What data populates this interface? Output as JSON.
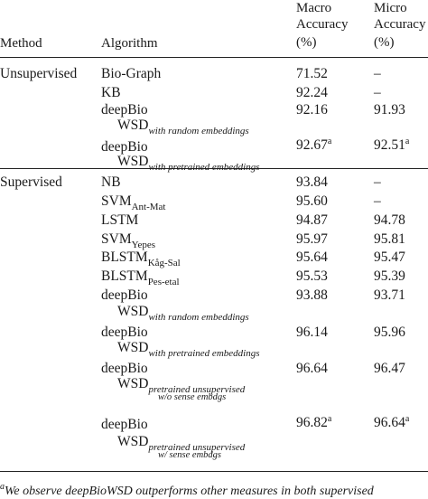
{
  "headers": {
    "method": "Method",
    "algorithm": "Algorithm",
    "macro": [
      "Macro",
      "Accuracy",
      "(%)"
    ],
    "micro": [
      "Micro",
      "Accuracy",
      "(%)"
    ]
  },
  "groups": {
    "unsupervised": "Unsupervised",
    "supervised": "Supervised"
  },
  "rows": [
    {
      "algo": "Bio-Graph",
      "macro": "71.52",
      "micro": "–"
    },
    {
      "algo": "KB",
      "macro": "92.24",
      "micro": "–"
    },
    {
      "algo": "deepBio",
      "macro": "92.16",
      "micro": "91.93"
    },
    {
      "algo": "WSD",
      "sub": "with random embeddings"
    },
    {
      "algo": "deepBio",
      "macro": "92.67",
      "macro_sup": "a",
      "micro": "92.51",
      "micro_sup": "a"
    },
    {
      "algo": "WSD",
      "sub": "with pretrained embeddings"
    },
    {
      "algo": "NB",
      "macro": "93.84",
      "micro": "–"
    },
    {
      "algo": "SVM",
      "sub": "Ant-Mat",
      "macro": "95.60",
      "micro": "–"
    },
    {
      "algo": "LSTM",
      "macro": "94.87",
      "micro": "94.78"
    },
    {
      "algo": "SVM",
      "sub": "Yepes",
      "macro": "95.97",
      "micro": "95.81"
    },
    {
      "algo": "BLSTM",
      "sub": "Kåg-Sal",
      "macro": "95.64",
      "micro": "95.47"
    },
    {
      "algo": "BLSTM",
      "sub": "Pes-etal",
      "macro": "95.53",
      "micro": "95.39"
    },
    {
      "algo": "deepBio",
      "macro": "93.88",
      "micro": "93.71"
    },
    {
      "algo": "WSD",
      "sub": "with random embeddings"
    },
    {
      "algo": "deepBio",
      "macro": "96.14",
      "micro": "95.96"
    },
    {
      "algo": "WSD",
      "sub": "with pretrained embeddings"
    },
    {
      "algo": "deepBio",
      "macro": "96.64",
      "micro": "96.47"
    },
    {
      "algo": "WSD",
      "sub": "pretrained unsupervised",
      "sub2": "w/o sense embdgs"
    },
    {
      "algo": "deepBio",
      "macro": "96.82",
      "macro_sup": "a",
      "micro": "96.64",
      "micro_sup": "a"
    },
    {
      "algo": "WSD",
      "sub": "pretrained unsupervised",
      "sub2": "w/ sense embdgs"
    }
  ],
  "footnote": {
    "mark": "a",
    "text": "We observe deepBioWSD outperforms other measures in both supervised"
  }
}
